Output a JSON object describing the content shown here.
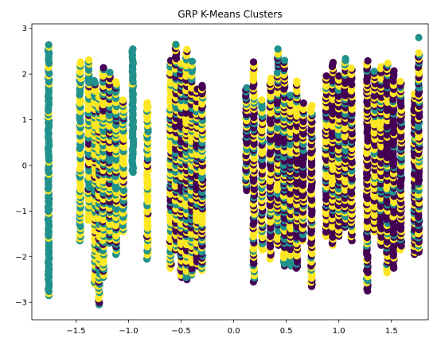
{
  "chart_data": {
    "type": "scatter",
    "title": "GRP K-Means Clusters",
    "xlabel": "",
    "ylabel": "",
    "xlim": [
      -1.92,
      1.85
    ],
    "ylim": [
      -3.38,
      3.1
    ],
    "xticks": [
      -1.5,
      -1.0,
      -0.5,
      0.0,
      0.5,
      1.0,
      1.5
    ],
    "xtick_labels": [
      "−1.5",
      "−1.0",
      "−0.5",
      "0.0",
      "0.5",
      "1.0",
      "1.5"
    ],
    "yticks": [
      -3,
      -2,
      -1,
      0,
      1,
      2,
      3
    ],
    "ytick_labels": [
      "−3",
      "−2",
      "−1",
      "0",
      "1",
      "2",
      "3"
    ],
    "grid": false,
    "legend": "none",
    "cluster_colors": [
      "#440154",
      "#21918c",
      "#fde725"
    ],
    "columns": [
      {
        "x": -1.76,
        "ymin": -2.85,
        "ymax": 2.62,
        "mix": [
          0,
          0.9,
          0.1
        ]
      },
      {
        "x": -1.46,
        "ymin": -1.65,
        "ymax": 2.25,
        "mix": [
          0,
          0.45,
          0.55
        ]
      },
      {
        "x": -1.38,
        "ymin": -1.2,
        "ymax": 2.3,
        "mix": [
          0.05,
          0.4,
          0.55
        ]
      },
      {
        "x": -1.32,
        "ymin": -2.6,
        "ymax": 1.85,
        "mix": [
          0.1,
          0.3,
          0.6
        ]
      },
      {
        "x": -1.28,
        "ymin": -3.05,
        "ymax": 1.55,
        "mix": [
          0.15,
          0.3,
          0.55
        ]
      },
      {
        "x": -1.24,
        "ymin": -2.45,
        "ymax": 2.15,
        "mix": [
          0.15,
          0.35,
          0.5
        ]
      },
      {
        "x": -1.18,
        "ymin": -1.7,
        "ymax": 2.05,
        "mix": [
          0.2,
          0.35,
          0.45
        ]
      },
      {
        "x": -1.12,
        "ymin": -1.95,
        "ymax": 1.85,
        "mix": [
          0.1,
          0.45,
          0.45
        ]
      },
      {
        "x": -1.05,
        "ymin": -1.45,
        "ymax": 1.45,
        "mix": [
          0.05,
          0.35,
          0.6
        ]
      },
      {
        "x": -0.96,
        "ymin": -0.15,
        "ymax": 2.55,
        "mix": [
          0,
          0.95,
          0.05
        ]
      },
      {
        "x": -0.82,
        "ymin": -2.05,
        "ymax": 1.35,
        "mix": [
          0.1,
          0.3,
          0.6
        ]
      },
      {
        "x": -0.6,
        "ymin": -2.25,
        "ymax": 2.3,
        "mix": [
          0.2,
          0.3,
          0.5
        ]
      },
      {
        "x": -0.55,
        "ymin": -1.85,
        "ymax": 2.65,
        "mix": [
          0.35,
          0.3,
          0.35
        ]
      },
      {
        "x": -0.5,
        "ymin": -2.45,
        "ymax": 2.25,
        "mix": [
          0.4,
          0.25,
          0.35
        ]
      },
      {
        "x": -0.45,
        "ymin": -2.5,
        "ymax": 2.55,
        "mix": [
          0.35,
          0.25,
          0.4
        ]
      },
      {
        "x": -0.4,
        "ymin": -2.4,
        "ymax": 2.3,
        "mix": [
          0.3,
          0.25,
          0.45
        ]
      },
      {
        "x": -0.35,
        "ymin": -2.2,
        "ymax": 1.65,
        "mix": [
          0.35,
          0.25,
          0.4
        ]
      },
      {
        "x": -0.3,
        "ymin": -2.3,
        "ymax": 1.75,
        "mix": [
          0.3,
          0.3,
          0.4
        ]
      },
      {
        "x": 0.12,
        "ymin": -0.55,
        "ymax": 1.7,
        "mix": [
          0.45,
          0.3,
          0.25
        ]
      },
      {
        "x": 0.19,
        "ymin": -2.55,
        "ymax": 2.25,
        "mix": [
          0.5,
          0.1,
          0.4
        ]
      },
      {
        "x": 0.27,
        "ymin": -1.85,
        "ymax": 1.45,
        "mix": [
          0.35,
          0.2,
          0.45
        ]
      },
      {
        "x": 0.35,
        "ymin": -2.05,
        "ymax": 1.9,
        "mix": [
          0.45,
          0.15,
          0.4
        ]
      },
      {
        "x": 0.42,
        "ymin": -1.75,
        "ymax": 2.5,
        "mix": [
          0.35,
          0.25,
          0.4
        ]
      },
      {
        "x": 0.48,
        "ymin": -2.2,
        "ymax": 2.3,
        "mix": [
          0.35,
          0.3,
          0.35
        ]
      },
      {
        "x": 0.54,
        "ymin": -2.2,
        "ymax": 1.55,
        "mix": [
          0.45,
          0.15,
          0.4
        ]
      },
      {
        "x": 0.6,
        "ymin": -2.25,
        "ymax": 1.85,
        "mix": [
          0.55,
          0.1,
          0.35
        ]
      },
      {
        "x": 0.66,
        "ymin": -1.65,
        "ymax": 1.35,
        "mix": [
          0.55,
          0.15,
          0.3
        ]
      },
      {
        "x": 0.74,
        "ymin": -2.65,
        "ymax": 1.3,
        "mix": [
          0.6,
          0.05,
          0.35
        ]
      },
      {
        "x": 0.88,
        "ymin": -1.55,
        "ymax": 1.95,
        "mix": [
          0.45,
          0.1,
          0.45
        ]
      },
      {
        "x": 0.94,
        "ymin": -1.75,
        "ymax": 2.25,
        "mix": [
          0.45,
          0.15,
          0.4
        ]
      },
      {
        "x": 1.0,
        "ymin": -1.55,
        "ymax": 1.95,
        "mix": [
          0.4,
          0.2,
          0.4
        ]
      },
      {
        "x": 1.06,
        "ymin": -1.35,
        "ymax": 2.35,
        "mix": [
          0.45,
          0.15,
          0.4
        ]
      },
      {
        "x": 1.12,
        "ymin": -1.65,
        "ymax": 2.15,
        "mix": [
          0.55,
          0.1,
          0.35
        ]
      },
      {
        "x": 1.27,
        "ymin": -2.75,
        "ymax": 2.3,
        "mix": [
          0.55,
          0.1,
          0.35
        ]
      },
      {
        "x": 1.34,
        "ymin": -1.45,
        "ymax": 2.05,
        "mix": [
          0.45,
          0.1,
          0.45
        ]
      },
      {
        "x": 1.4,
        "ymin": -1.75,
        "ymax": 2.15,
        "mix": [
          0.5,
          0.15,
          0.35
        ]
      },
      {
        "x": 1.46,
        "ymin": -2.35,
        "ymax": 2.25,
        "mix": [
          0.5,
          0.15,
          0.35
        ]
      },
      {
        "x": 1.52,
        "ymin": -2.25,
        "ymax": 2.05,
        "mix": [
          0.65,
          0.1,
          0.25
        ]
      },
      {
        "x": 1.59,
        "ymin": -1.85,
        "ymax": 1.85,
        "mix": [
          0.55,
          0.1,
          0.35
        ]
      },
      {
        "x": 1.72,
        "ymin": -1.95,
        "ymax": 1.55,
        "mix": [
          0.5,
          0.1,
          0.4
        ]
      },
      {
        "x": 1.76,
        "ymin": -1.9,
        "ymax": 2.45,
        "mix": [
          0.45,
          0.25,
          0.3
        ]
      }
    ],
    "outliers": [
      {
        "x": 1.76,
        "y": 2.8,
        "cluster": 1
      },
      {
        "x": -0.55,
        "y": 2.65,
        "cluster": 1
      },
      {
        "x": 0.42,
        "y": 2.55,
        "cluster": 1
      }
    ]
  }
}
